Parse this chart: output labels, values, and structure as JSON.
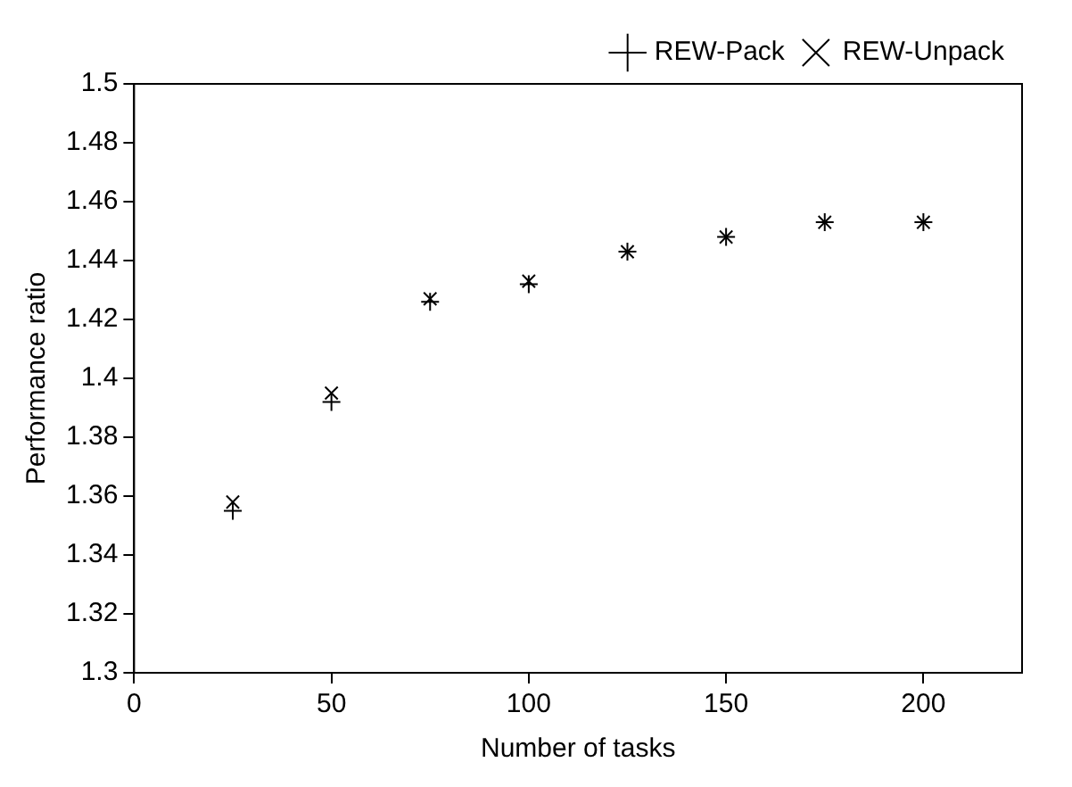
{
  "chart_data": {
    "type": "scatter",
    "xlabel": "Number of tasks",
    "ylabel": "Performance ratio",
    "x": [
      25,
      50,
      75,
      100,
      125,
      150,
      175,
      200
    ],
    "series": [
      {
        "name": "REW-Pack",
        "color": "#000000",
        "marker": "plus",
        "values": [
          1.355,
          1.392,
          1.426,
          1.432,
          1.443,
          1.448,
          1.453,
          1.453
        ]
      },
      {
        "name": "REW-Unpack",
        "color": "#000000",
        "marker": "cross",
        "values": [
          1.358,
          1.395,
          1.427,
          1.433,
          1.443,
          1.448,
          1.453,
          1.453
        ]
      }
    ],
    "xlim": [
      0,
      225
    ],
    "xticks": [
      0,
      50,
      100,
      150,
      200
    ],
    "ylim": [
      1.3,
      1.5
    ],
    "yticks": [
      1.3,
      1.32,
      1.34,
      1.36,
      1.38,
      1.4,
      1.42,
      1.44,
      1.46,
      1.48,
      1.5
    ],
    "grid": false,
    "legend": "top right"
  }
}
